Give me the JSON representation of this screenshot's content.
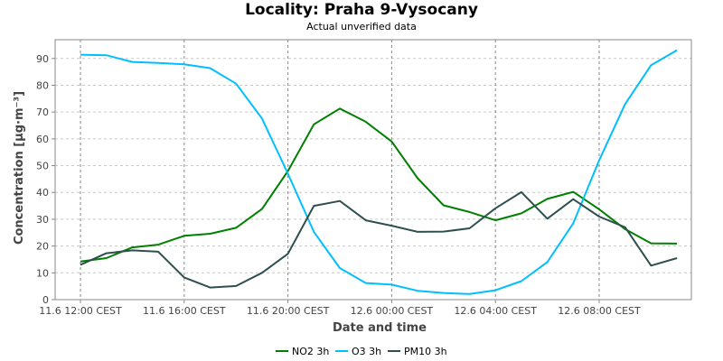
{
  "chart_data": {
    "type": "line",
    "title": "Locality: Praha 9-Vysocany",
    "subtitle": "Actual unverified data",
    "xlabel": "Date and time",
    "ylabel": "Concentration [µg·m⁻³]",
    "ylim": [
      0,
      97
    ],
    "yticks": [
      0,
      10,
      20,
      30,
      40,
      50,
      60,
      70,
      80,
      90
    ],
    "x_tick_labels": [
      "11.6 12:00 CEST",
      "11.6 16:00 CEST",
      "11.6 20:00 CEST",
      "12.6 00:00 CEST",
      "12.6 04:00 CEST",
      "12.6 08:00 CEST"
    ],
    "grid": true,
    "legend_position": "bottom",
    "x": [
      "11.6 12:00",
      "11.6 13:00",
      "11.6 14:00",
      "11.6 15:00",
      "11.6 16:00",
      "11.6 17:00",
      "11.6 18:00",
      "11.6 19:00",
      "11.6 20:00",
      "11.6 21:00",
      "11.6 22:00",
      "11.6 23:00",
      "12.6 00:00",
      "12.6 01:00",
      "12.6 02:00",
      "12.6 03:00",
      "12.6 04:00",
      "12.6 05:00",
      "12.6 06:00",
      "12.6 07:00",
      "12.6 08:00",
      "12.6 09:00",
      "12.6 10:00",
      "12.6 11:00"
    ],
    "series": [
      {
        "name": "NO2 3h",
        "color": "#008000",
        "values": [
          14.2,
          15.5,
          19.5,
          20.5,
          23.8,
          24.6,
          26.8,
          33.8,
          48.0,
          65.4,
          71.3,
          66.4,
          59.0,
          45.3,
          35.2,
          32.7,
          29.6,
          32.2,
          37.6,
          40.2,
          33.7,
          26.3,
          21.0,
          20.9
        ]
      },
      {
        "name": "O3 3h",
        "color": "#00BFFF",
        "values": [
          91.4,
          91.2,
          88.7,
          88.3,
          87.8,
          86.4,
          80.6,
          67.6,
          47.0,
          25.3,
          11.8,
          6.2,
          5.6,
          3.3,
          2.5,
          2.1,
          3.5,
          6.9,
          14.0,
          28.5,
          52.0,
          73.0,
          87.5,
          93.1
        ]
      },
      {
        "name": "PM10 3h",
        "color": "#2F4F4F",
        "values": [
          13.0,
          17.3,
          18.4,
          17.9,
          8.3,
          4.5,
          5.1,
          10.0,
          17.1,
          35.0,
          36.8,
          29.6,
          27.6,
          25.3,
          25.4,
          26.6,
          34.1,
          40.1,
          30.2,
          37.5,
          31.0,
          27.0,
          12.7,
          15.5
        ]
      }
    ]
  }
}
